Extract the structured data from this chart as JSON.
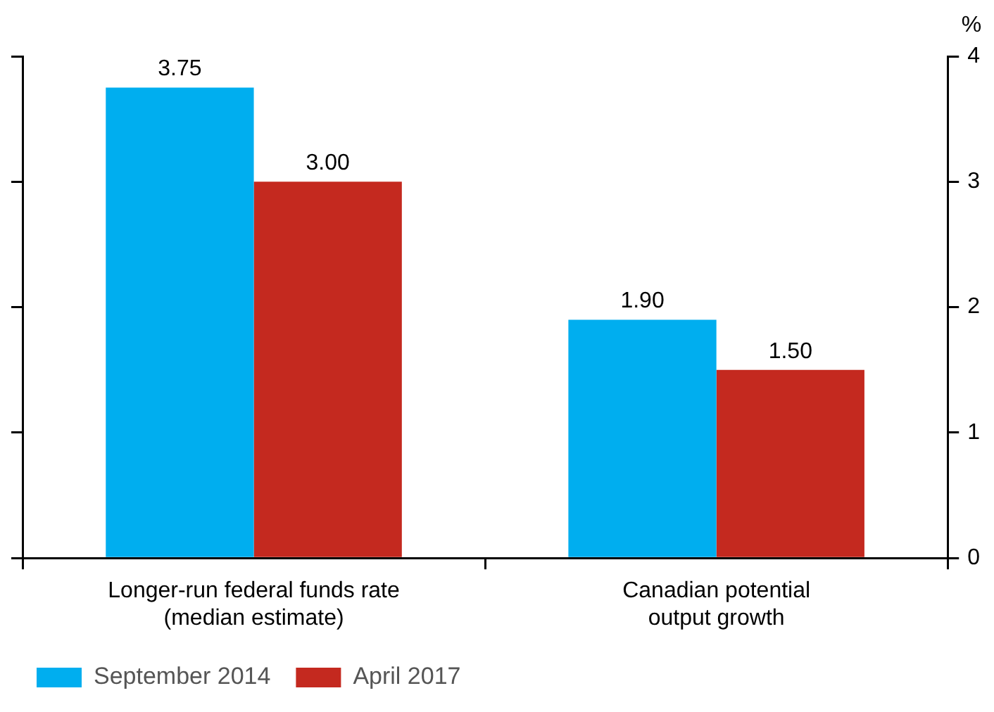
{
  "chart_data": {
    "type": "bar",
    "ylabel": "%",
    "categories": [
      "Longer-run federal funds rate\n(median estimate)",
      "Canadian potential\noutput growth"
    ],
    "series": [
      {
        "name": "September 2014",
        "color": "#00aeef",
        "values": [
          3.75,
          1.9
        ],
        "value_labels": [
          "3.75",
          "1.90"
        ]
      },
      {
        "name": "April 2017",
        "color": "#c4291f",
        "values": [
          3.0,
          1.5
        ],
        "value_labels": [
          "3.00",
          "1.50"
        ]
      }
    ],
    "ylim": [
      0,
      4
    ],
    "yticks": [
      0,
      1,
      2,
      3,
      4
    ],
    "grid": false,
    "legend": "bottom left"
  }
}
